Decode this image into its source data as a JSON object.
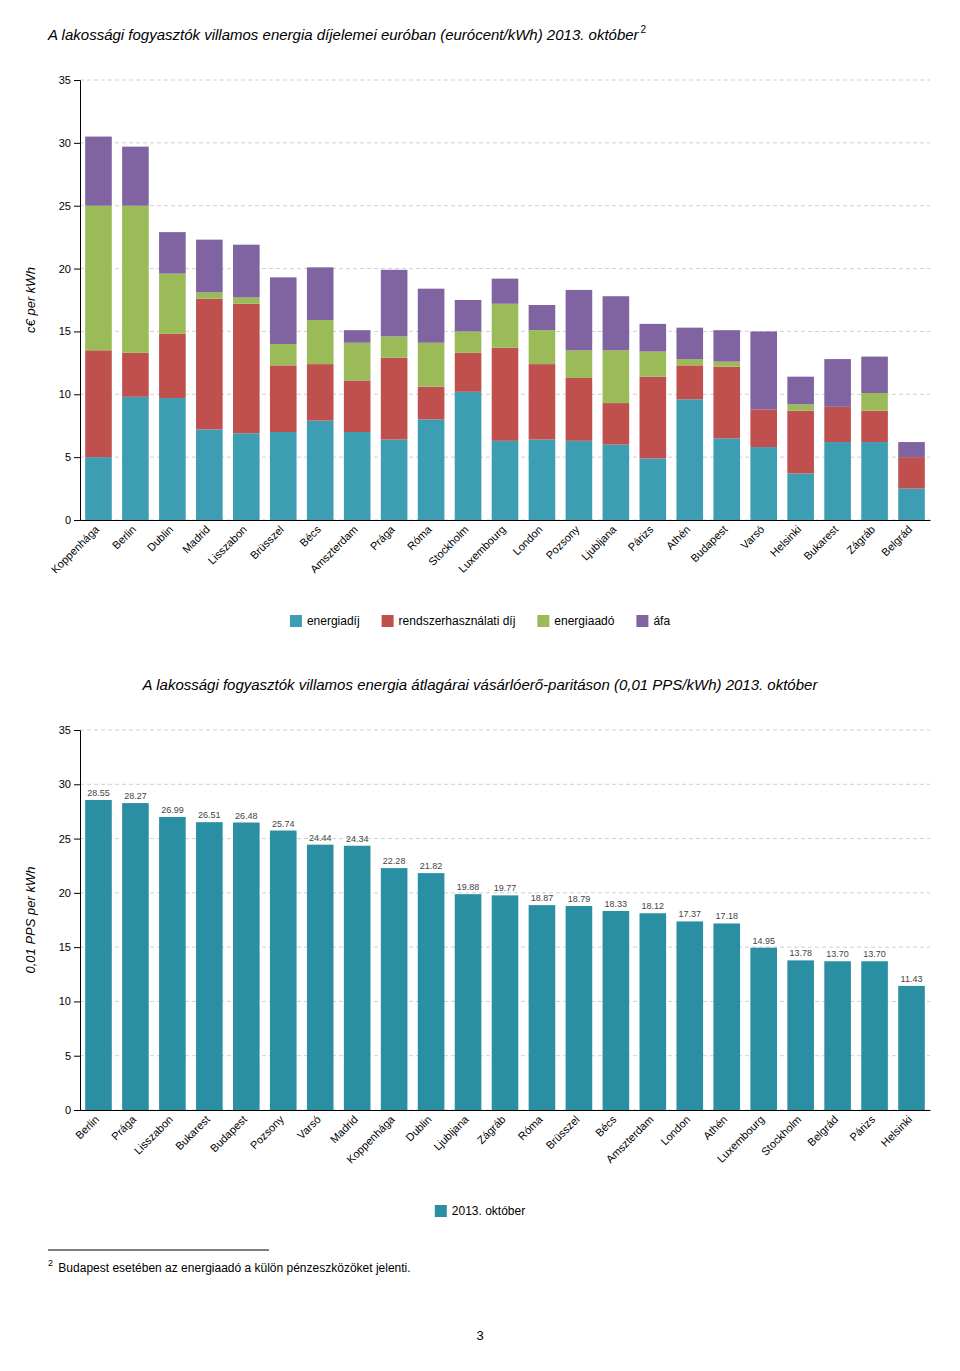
{
  "chart_data": [
    {
      "type": "bar",
      "title": "A lakossági fogyasztók villamos energia díjelemei euróban (eurócent/kWh) 2013. október",
      "title_superscript": "2",
      "ylabel": "c€ per kWh",
      "categories": [
        "Koppenhága",
        "Berlin",
        "Dublin",
        "Madrid",
        "Lisszabon",
        "Brüsszel",
        "Bécs",
        "Amszterdam",
        "Prága",
        "Róma",
        "Stockholm",
        "Luxembourg",
        "London",
        "Pozsony",
        "Ljubljana",
        "Párizs",
        "Athén",
        "Budapest",
        "Varsó",
        "Helsinki",
        "Bukarest",
        "Zágráb",
        "Belgrád"
      ],
      "series": [
        {
          "name": "energiadíj",
          "color": "#3d9db3",
          "values": [
            5.0,
            9.8,
            9.7,
            7.2,
            6.9,
            7.0,
            7.9,
            7.0,
            6.4,
            8.0,
            10.2,
            6.3,
            6.4,
            6.3,
            6.0,
            4.9,
            9.6,
            6.5,
            5.8,
            3.7,
            6.2,
            6.2,
            2.5
          ]
        },
        {
          "name": "rendszerhasználati díj",
          "color": "#c0504d",
          "values": [
            8.5,
            3.5,
            5.1,
            10.4,
            10.3,
            5.3,
            4.5,
            4.1,
            6.5,
            2.6,
            3.1,
            7.4,
            6.0,
            5.0,
            3.3,
            6.5,
            2.7,
            5.7,
            3.0,
            5.0,
            2.8,
            2.5,
            2.5
          ]
        },
        {
          "name": "energiaadó",
          "color": "#9bbb59",
          "values": [
            11.5,
            11.7,
            4.8,
            0.5,
            0.5,
            1.7,
            3.5,
            3.0,
            1.7,
            3.5,
            1.7,
            3.5,
            2.7,
            2.2,
            4.2,
            2.0,
            0.5,
            0.4,
            0.0,
            0.5,
            0.0,
            1.4,
            0.0
          ]
        },
        {
          "name": "áfa",
          "color": "#8064a2",
          "values": [
            5.5,
            4.7,
            3.3,
            4.2,
            4.2,
            5.3,
            4.2,
            1.0,
            5.3,
            4.3,
            2.5,
            2.0,
            2.0,
            4.8,
            4.3,
            2.2,
            2.5,
            2.5,
            6.2,
            2.2,
            3.8,
            2.9,
            1.2
          ]
        }
      ],
      "stacked": true,
      "ylim": [
        0,
        35
      ],
      "yticks": [
        0,
        5,
        10,
        15,
        20,
        25,
        30,
        35
      ],
      "grid": true,
      "legend": "bottom"
    },
    {
      "type": "bar",
      "title": "A lakossági fogyasztók villamos energia átlagárai vásárlóerő-paritáson (0,01 PPS/kWh) 2013. október",
      "ylabel": "0,01 PPS per kWh",
      "categories": [
        "Berlin",
        "Prága",
        "Lisszabon",
        "Bukarest",
        "Budapest",
        "Pozsony",
        "Varsó",
        "Madrid",
        "Koppenhága",
        "Dublin",
        "Ljubljana",
        "Zágráb",
        "Róma",
        "Brüsszel",
        "Bécs",
        "Amszterdam",
        "London",
        "Athén",
        "Luxembourg",
        "Stockholm",
        "Belgrád",
        "Párizs",
        "Helsinki"
      ],
      "series": [
        {
          "name": "2013. október",
          "color": "#2b8fa3",
          "values": [
            28.55,
            28.27,
            26.99,
            26.51,
            26.48,
            25.74,
            24.44,
            24.34,
            22.28,
            21.82,
            19.88,
            19.77,
            18.87,
            18.79,
            18.33,
            18.12,
            17.37,
            17.18,
            14.95,
            13.78,
            13.7,
            13.7,
            11.43
          ],
          "value_labels": [
            "28.55",
            "28.27",
            "26.99",
            "26.51",
            "26.48",
            "25.74",
            "24.44",
            "24.34",
            "22.28",
            "21.82",
            "19.88",
            "19.77",
            "18.87",
            "18.79",
            "18.33",
            "18.12",
            "17.37",
            "17.18",
            "14.95",
            "13.78",
            "13.70",
            "13.70",
            "11.43"
          ]
        }
      ],
      "data_labels": true,
      "ylim": [
        0,
        35
      ],
      "yticks": [
        0,
        5,
        10,
        15,
        20,
        25,
        30,
        35
      ],
      "grid": true,
      "legend": "bottom"
    }
  ],
  "footnote": {
    "marker": "2",
    "text": " Budapest esetében az energiaadó a külön pénzeszközöket jelenti."
  },
  "page_number": "3"
}
